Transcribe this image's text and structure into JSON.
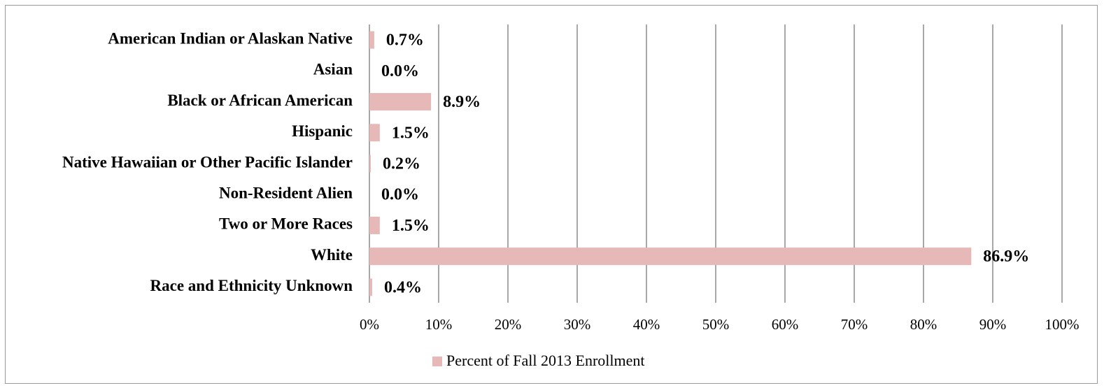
{
  "chart_data": {
    "type": "bar",
    "orientation": "horizontal",
    "grid": true,
    "legend": "bottom",
    "categories": [
      "American Indian or Alaskan Native",
      "Asian",
      "Black or African American",
      "Hispanic",
      "Native Hawaiian or Other Pacific Islander",
      "Non-Resident Alien",
      "Two or More Races",
      "White",
      "Race and Ethnicity Unknown"
    ],
    "series": [
      {
        "name": "Percent of Fall 2013 Enrollment",
        "color": "#e6b9b8",
        "values": [
          0.7,
          0.0,
          8.9,
          1.5,
          0.2,
          0.0,
          1.5,
          86.9,
          0.4
        ],
        "value_labels": [
          "0.7%",
          "0.0%",
          "8.9%",
          "1.5%",
          "0.2%",
          "0.0%",
          "1.5%",
          "86.9%",
          "0.4%"
        ]
      }
    ],
    "xlim": [
      0,
      100
    ],
    "xticks": [
      {
        "value": 0,
        "label": "0%"
      },
      {
        "value": 10,
        "label": "10%"
      },
      {
        "value": 20,
        "label": "20%"
      },
      {
        "value": 30,
        "label": "30%"
      },
      {
        "value": 40,
        "label": "40%"
      },
      {
        "value": 50,
        "label": "50%"
      },
      {
        "value": 60,
        "label": "60%"
      },
      {
        "value": 70,
        "label": "70%"
      },
      {
        "value": 80,
        "label": "80%"
      },
      {
        "value": 90,
        "label": "90%"
      },
      {
        "value": 100,
        "label": "100%"
      }
    ]
  }
}
